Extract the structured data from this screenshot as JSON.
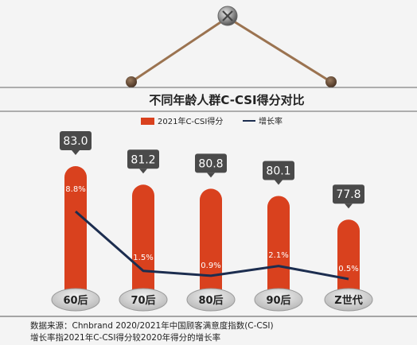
{
  "chart_data": {
    "type": "bar",
    "title": "不同年龄人群C-CSI得分对比",
    "categories": [
      "60后",
      "70后",
      "80后",
      "90后",
      "Z世代"
    ],
    "series": [
      {
        "name": "2021年C-CSI得分",
        "type": "bar",
        "values": [
          83.0,
          81.2,
          80.8,
          80.1,
          77.8
        ],
        "labels": [
          "83.0",
          "81.2",
          "80.8",
          "80.1",
          "77.8"
        ]
      },
      {
        "name": "增长率",
        "type": "line",
        "values": [
          8.8,
          1.5,
          0.9,
          2.1,
          0.5
        ],
        "labels": [
          "8.8%",
          "1.5%",
          "0.9%",
          "2.1%",
          "0.5%"
        ]
      }
    ],
    "footnotes": [
      "数据来源：Chnbrand 2020/2021年中国顾客满意度指数(C-CSI)",
      "增长率指2021年C-CSI得分较2020年得分的增长率"
    ],
    "colors": {
      "bar": "#d9411e",
      "line": "#1c2d4f",
      "badge": "#4a4a4a",
      "wire": "#9b7350",
      "bg": "#f4f4f4"
    }
  }
}
